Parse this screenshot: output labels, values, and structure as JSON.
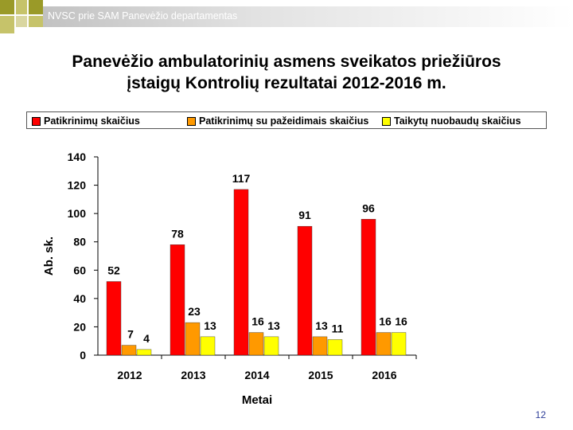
{
  "header": {
    "org_text": "NVSC prie SAM Panevėžio departamentas"
  },
  "slide": {
    "title_line1": "Panevėžio ambulatorinių asmens sveikatos priežiūros",
    "title_line2": "įstaigų Kontrolių rezultatai 2012-2016 m.",
    "page_number": "12"
  },
  "colors": {
    "accent_olive": "#9a9a28",
    "accent_olive_light": "#c6c36a"
  },
  "chart_data": {
    "type": "bar",
    "xlabel": "Metai",
    "ylabel": "Ab. sk.",
    "ylim": [
      0,
      140
    ],
    "yticks": [
      0,
      20,
      40,
      60,
      80,
      100,
      120,
      140
    ],
    "categories": [
      "2012",
      "2013",
      "2014",
      "2015",
      "2016"
    ],
    "legend_position": "top",
    "grid": false,
    "series": [
      {
        "name": "Patikrinimų skaičius",
        "color": "#ff0000",
        "values": [
          52,
          78,
          117,
          91,
          96
        ]
      },
      {
        "name": "Patikrinimų su pažeidimais skaičius",
        "color": "#ff9900",
        "values": [
          7,
          23,
          16,
          13,
          16
        ]
      },
      {
        "name": "Taikytų nuobaudų skaičius",
        "color": "#ffff00",
        "values": [
          4,
          13,
          13,
          11,
          16
        ]
      }
    ]
  }
}
